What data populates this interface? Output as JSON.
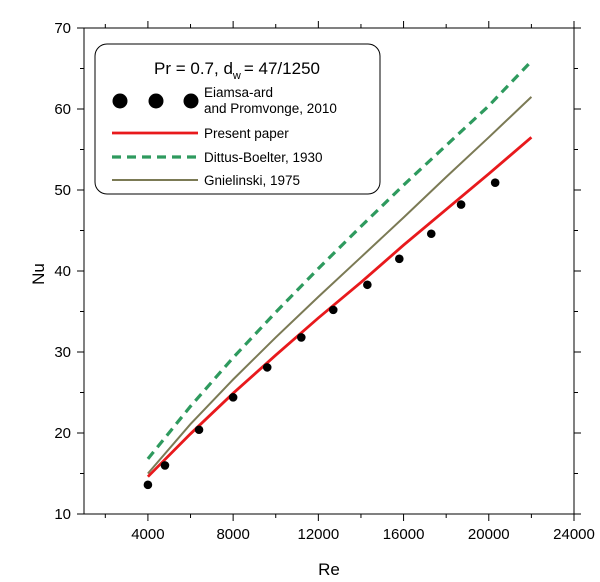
{
  "chart_data": {
    "type": "line",
    "xlabel": "Re",
    "ylabel": "Nu",
    "xlim": [
      1000,
      24000
    ],
    "ylim": [
      10,
      70
    ],
    "xticks": [
      4000,
      8000,
      12000,
      16000,
      20000,
      24000
    ],
    "yticks": [
      10,
      20,
      30,
      40,
      50,
      60,
      70
    ],
    "x_tick_labels": [
      "4000",
      "8000",
      "12000",
      "16000",
      "20000",
      "24000"
    ],
    "y_tick_labels": [
      "10",
      "20",
      "30",
      "40",
      "50",
      "60",
      "70"
    ],
    "grid": false,
    "legend": {
      "placement": "top-left",
      "title_main": "Pr = 0.7, d",
      "title_sub": "w",
      "title_tail": "= 47/1250"
    },
    "series": [
      {
        "name": "Eiamsa-ard and Promvonge, 2010",
        "label_lines": [
          "Eiamsa-ard",
          "and Promvonge, 2010"
        ],
        "style": "markers",
        "color": "#000000",
        "x": [
          4000,
          4800,
          6400,
          8000,
          9600,
          11200,
          12700,
          14300,
          15800,
          17300,
          18700,
          20300
        ],
        "y": [
          13.6,
          16.0,
          20.4,
          24.4,
          28.1,
          31.8,
          35.2,
          38.3,
          41.5,
          44.6,
          48.2,
          50.9
        ]
      },
      {
        "name": "Present paper",
        "label_lines": [
          "Present paper"
        ],
        "style": "solid",
        "color": "#e8191c",
        "x": [
          4000,
          6000,
          8000,
          10000,
          12000,
          14000,
          16000,
          18000,
          20000,
          22000
        ],
        "y": [
          14.6,
          19.9,
          24.9,
          29.6,
          34.2,
          38.6,
          43.2,
          47.6,
          52.0,
          56.5
        ]
      },
      {
        "name": "Dittus-Boelter, 1930",
        "label_lines": [
          "Dittus-Boelter, 1930"
        ],
        "style": "dashed",
        "color": "#2e9a5e",
        "x": [
          4000,
          6000,
          8000,
          10000,
          12000,
          14000,
          16000,
          18000,
          20000,
          22000
        ],
        "y": [
          16.8,
          23.3,
          29.3,
          34.9,
          40.3,
          45.5,
          50.6,
          55.5,
          60.4,
          65.9
        ]
      },
      {
        "name": "Gnielinski, 1975",
        "label_lines": [
          "Gnielinski, 1975"
        ],
        "style": "solid-thin",
        "color": "#7b7a55",
        "x": [
          4000,
          6000,
          8000,
          10000,
          12000,
          14000,
          16000,
          18000,
          20000,
          22000
        ],
        "y": [
          15.0,
          21.1,
          26.6,
          31.8,
          36.8,
          41.7,
          46.6,
          51.6,
          56.5,
          61.5
        ]
      }
    ]
  }
}
